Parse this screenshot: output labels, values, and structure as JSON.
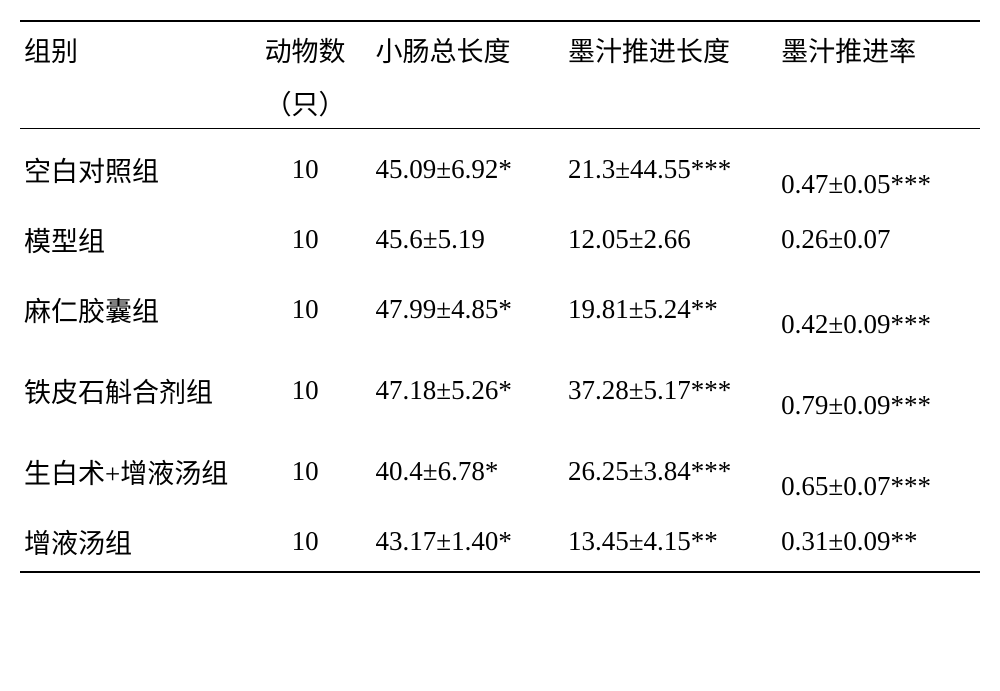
{
  "headers": {
    "group": "组别",
    "animals_line1": "动物数",
    "animals_line2": "（只）",
    "intestine_length": "小肠总长度",
    "ink_push_length": "墨汁推进长度",
    "ink_push_rate": "墨汁推进率"
  },
  "rows": [
    {
      "group": "空白对照组",
      "animals": "10",
      "intestine_length": "45.09±6.92*",
      "ink_push_length": "21.3±44.55***",
      "ink_push_rate": "0.47±0.05***",
      "rate_offset": true
    },
    {
      "group": "模型组",
      "animals": "10",
      "intestine_length": "45.6±5.19",
      "ink_push_length": "12.05±2.66",
      "ink_push_rate": "0.26±0.07",
      "rate_offset": false
    },
    {
      "group": "麻仁胶囊组",
      "animals": "10",
      "intestine_length": "47.99±4.85*",
      "ink_push_length": "19.81±5.24**",
      "ink_push_rate": "0.42±0.09***",
      "rate_offset": true
    },
    {
      "group": "铁皮石斛合剂组",
      "animals": "10",
      "intestine_length": "47.18±5.26*",
      "ink_push_length": "37.28±5.17***",
      "ink_push_rate": "0.79±0.09***",
      "rate_offset": true
    },
    {
      "group": "生白术+增液汤组",
      "animals": "10",
      "intestine_length": "40.4±6.78*",
      "ink_push_length": "26.25±3.84***",
      "ink_push_rate": "0.65±0.07***",
      "rate_offset": true
    },
    {
      "group": "增液汤组",
      "animals": "10",
      "intestine_length": "43.17±1.40*",
      "ink_push_length": "13.45±4.15**",
      "ink_push_rate": "0.31±0.09**",
      "rate_offset": false
    }
  ]
}
